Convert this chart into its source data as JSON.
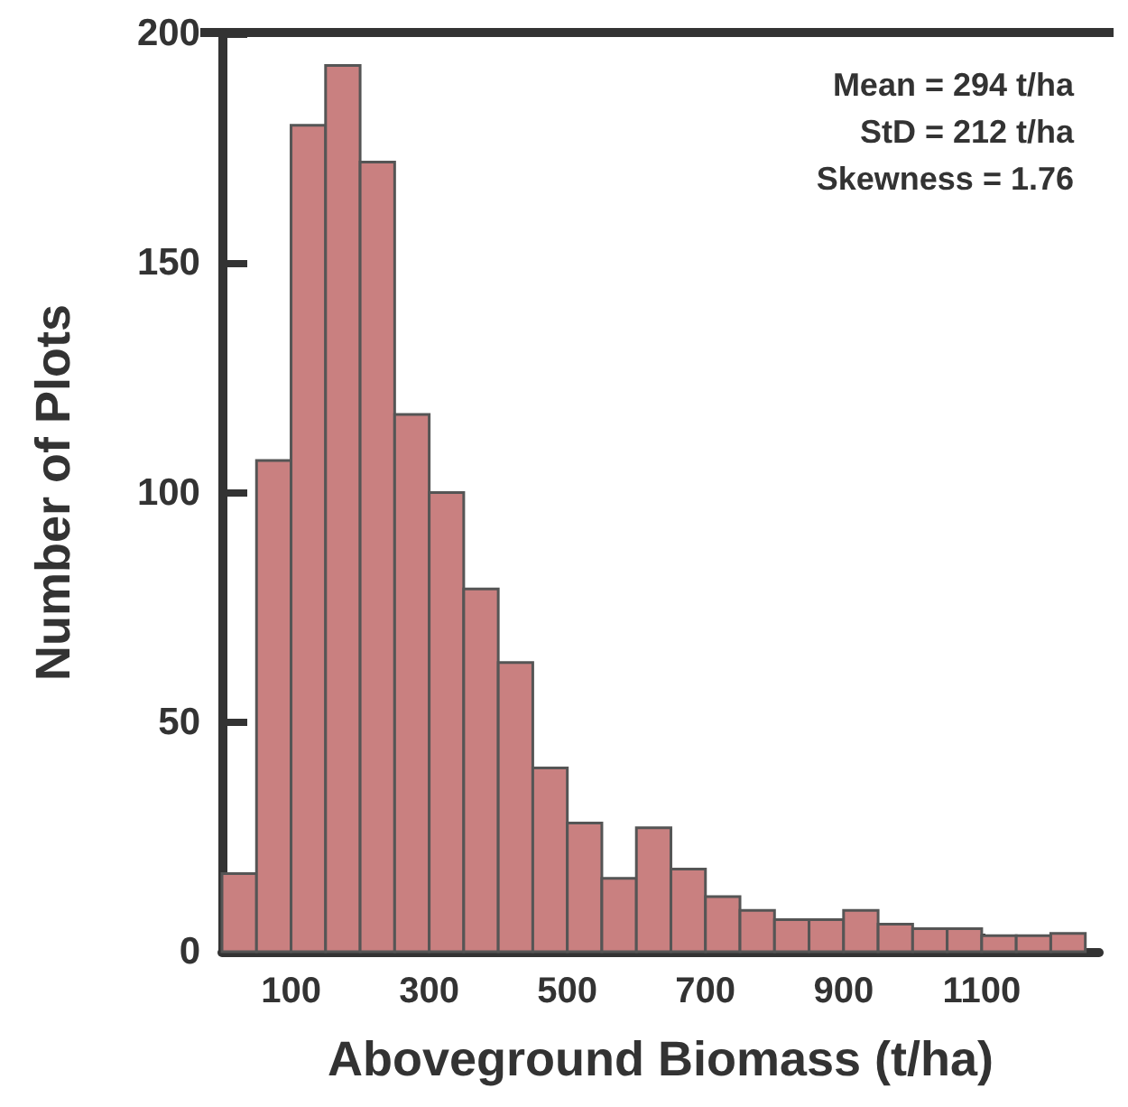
{
  "chart_data": {
    "type": "histogram",
    "xlabel": "Aboveground Biomass (t/ha)",
    "ylabel": "Number of Plots",
    "bins": [
      0,
      50,
      100,
      150,
      200,
      250,
      300,
      350,
      400,
      450,
      500,
      550,
      600,
      650,
      700,
      750,
      800,
      850,
      900,
      950,
      1000,
      1050,
      1100,
      1150,
      1200,
      1250
    ],
    "values": [
      17,
      107,
      180,
      193,
      172,
      117,
      100,
      79,
      63,
      40,
      28,
      16,
      27,
      18,
      12,
      9,
      7,
      7,
      9,
      6,
      5,
      5,
      3.5,
      3.5,
      4
    ],
    "color": "#c98080",
    "xlim": [
      0,
      1270
    ],
    "xticks": [
      100,
      300,
      500,
      700,
      900,
      1100
    ],
    "ylim": [
      0,
      200
    ],
    "yticks": [
      0,
      50,
      100,
      150,
      200
    ],
    "grid": false,
    "annotations": [
      "Mean = 294 t/ha",
      "StD = 212 t/ha",
      "Skewness = 1.76"
    ]
  }
}
